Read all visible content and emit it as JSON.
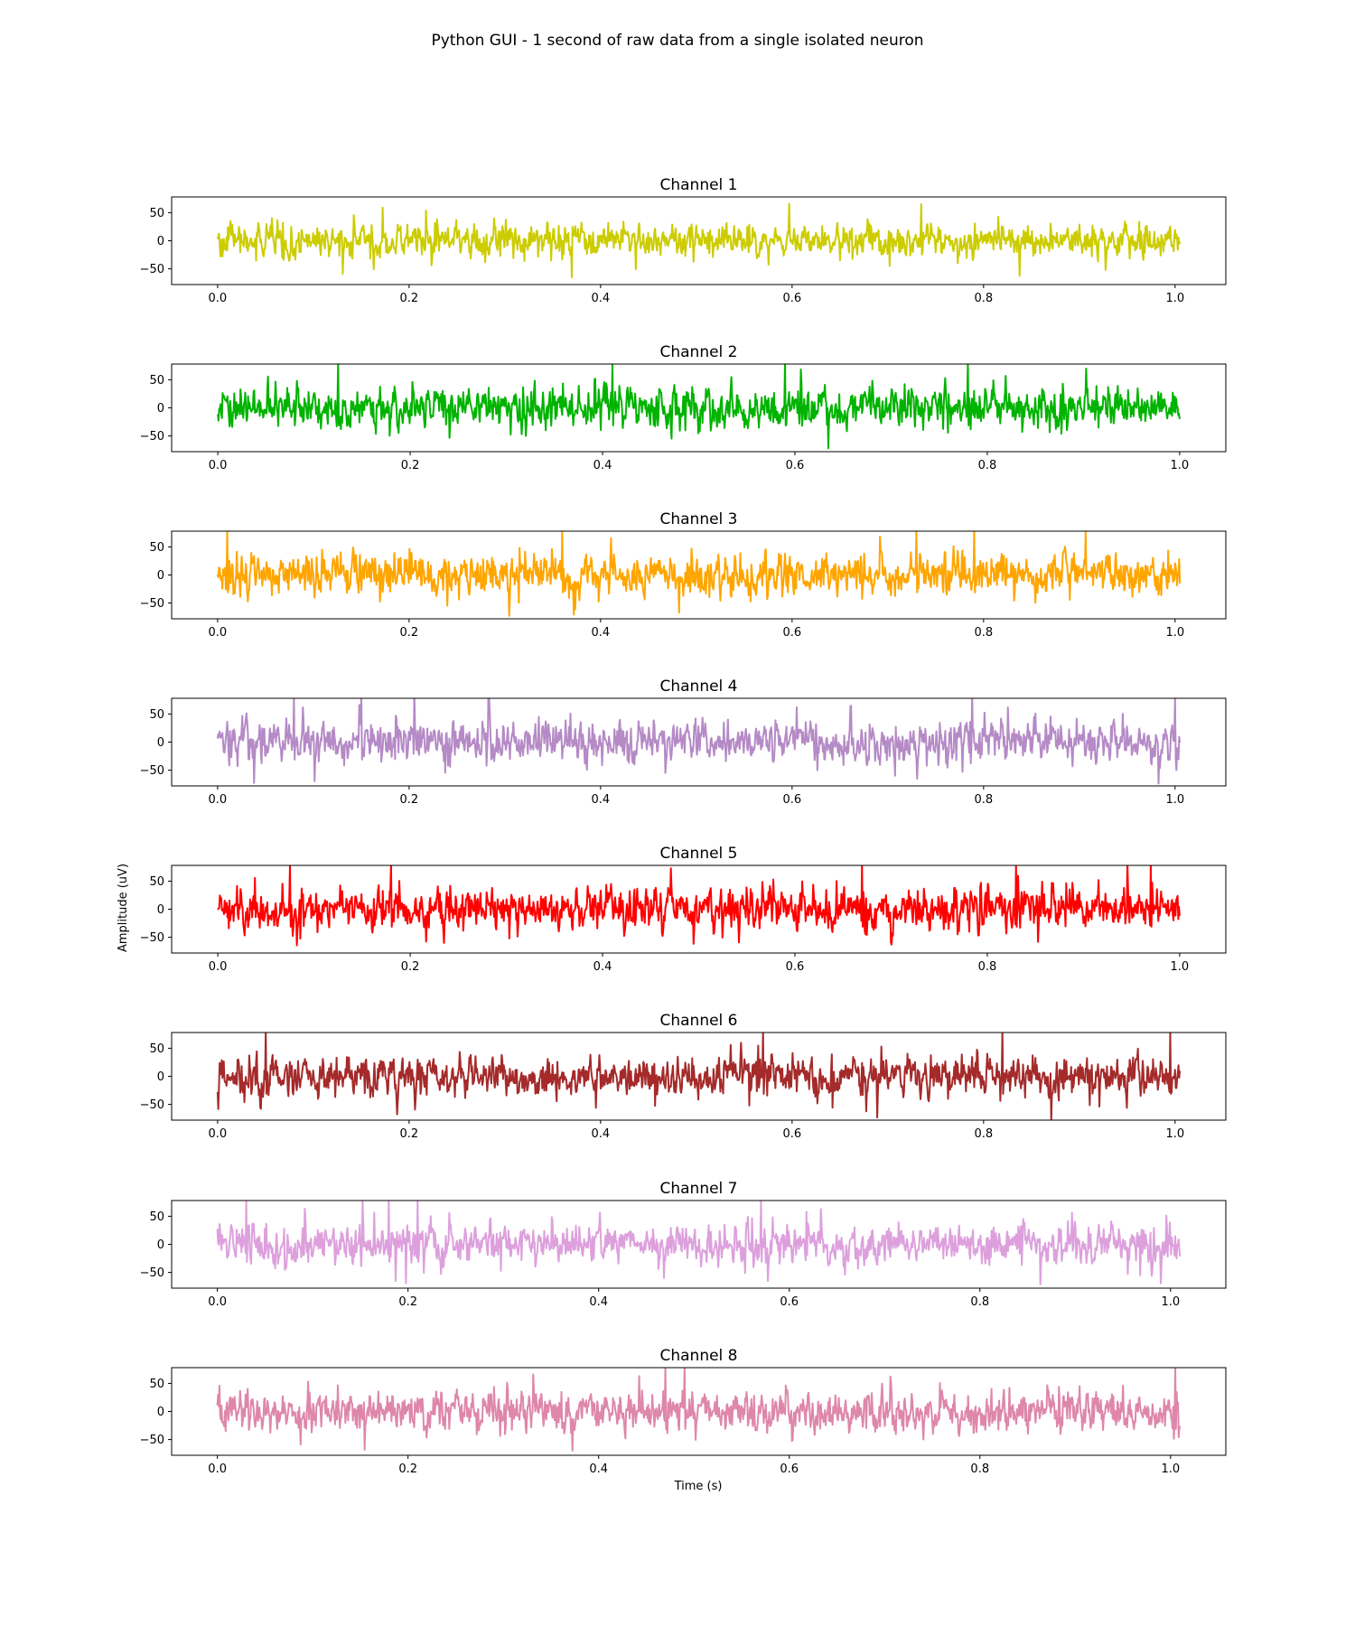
{
  "figure": {
    "title": "Python GUI - 1 second of raw data from a single isolated neuron",
    "xlabel": "Time (s)",
    "ylabel": "Amplitude (uV)"
  },
  "chart_data": [
    {
      "type": "line",
      "title": "Channel 1",
      "color": "#cccc00",
      "xlim": [
        -0.048,
        1.053
      ],
      "ylim": [
        -78,
        78
      ],
      "x_range": [
        0.0,
        1.005
      ],
      "xticks": [
        "0.0",
        "0.2",
        "0.4",
        "0.6",
        "0.8",
        "1.0"
      ],
      "xtick_values": [
        0.0,
        0.2,
        0.4,
        0.6,
        0.8,
        1.0
      ],
      "yticks": [
        "50",
        "0",
        "−50"
      ],
      "ytick_values": [
        50,
        0,
        -50
      ],
      "amplitude_range": [
        -62,
        62
      ],
      "peaks": [
        {
          "x": 0.735,
          "y": 62
        },
        {
          "x": 0.37,
          "y": -62
        }
      ]
    },
    {
      "type": "line",
      "title": "Channel 2",
      "color": "#00b300",
      "xlim": [
        -0.048,
        1.048
      ],
      "ylim": [
        -78,
        78
      ],
      "x_range": [
        0.0,
        1.0
      ],
      "xticks": [
        "0.0",
        "0.2",
        "0.4",
        "0.6",
        "0.8",
        "1.0"
      ],
      "xtick_values": [
        0.0,
        0.2,
        0.4,
        0.6,
        0.8,
        1.0
      ],
      "yticks": [
        "50",
        "0",
        "−50"
      ],
      "ytick_values": [
        50,
        0,
        -50
      ],
      "amplitude_range": [
        -78,
        78
      ],
      "peaks": [
        {
          "x": 0.125,
          "y": 78
        },
        {
          "x": 0.41,
          "y": 78
        },
        {
          "x": 0.59,
          "y": 78
        },
        {
          "x": 0.78,
          "y": 78
        }
      ]
    },
    {
      "type": "line",
      "title": "Channel 3",
      "color": "#ffa500",
      "xlim": [
        -0.048,
        1.053
      ],
      "ylim": [
        -78,
        78
      ],
      "x_range": [
        0.0,
        1.005
      ],
      "xticks": [
        "0.0",
        "0.2",
        "0.4",
        "0.6",
        "0.8",
        "1.0"
      ],
      "xtick_values": [
        0.0,
        0.2,
        0.4,
        0.6,
        0.8,
        1.0
      ],
      "yticks": [
        "50",
        "0",
        "−50"
      ],
      "ytick_values": [
        50,
        0,
        -50
      ],
      "amplitude_range": [
        -78,
        78
      ],
      "peaks": [
        {
          "x": 0.01,
          "y": 78
        },
        {
          "x": 0.36,
          "y": 78
        },
        {
          "x": 0.73,
          "y": 78
        },
        {
          "x": 0.79,
          "y": 78
        }
      ]
    },
    {
      "type": "line",
      "title": "Channel 4",
      "color": "#b58ac6",
      "xlim": [
        -0.048,
        1.053
      ],
      "ylim": [
        -78,
        78
      ],
      "x_range": [
        0.0,
        1.005
      ],
      "xticks": [
        "0.0",
        "0.2",
        "0.4",
        "0.6",
        "0.8",
        "1.0"
      ],
      "xtick_values": [
        0.0,
        0.2,
        0.4,
        0.6,
        0.8,
        1.0
      ],
      "yticks": [
        "50",
        "0",
        "−50"
      ],
      "ytick_values": [
        50,
        0,
        -50
      ],
      "amplitude_range": [
        -78,
        78
      ],
      "peaks": [
        {
          "x": 0.08,
          "y": 78
        },
        {
          "x": 0.15,
          "y": 78
        },
        {
          "x": 1.0,
          "y": 78
        }
      ]
    },
    {
      "type": "line",
      "title": "Channel 5",
      "color": "#ff0000",
      "xlim": [
        -0.048,
        1.048
      ],
      "ylim": [
        -78,
        78
      ],
      "x_range": [
        0.0,
        1.0
      ],
      "xticks": [
        "0.0",
        "0.2",
        "0.4",
        "0.6",
        "0.8",
        "1.0"
      ],
      "xtick_values": [
        0.0,
        0.2,
        0.4,
        0.6,
        0.8,
        1.0
      ],
      "yticks": [
        "50",
        "0",
        "−50"
      ],
      "ytick_values": [
        50,
        0,
        -50
      ],
      "amplitude_range": [
        -78,
        78
      ],
      "peaks": [
        {
          "x": 0.075,
          "y": 78
        },
        {
          "x": 0.18,
          "y": 78
        },
        {
          "x": 0.67,
          "y": 78
        },
        {
          "x": 0.83,
          "y": 78
        },
        {
          "x": 0.97,
          "y": 78
        }
      ]
    },
    {
      "type": "line",
      "title": "Channel 6",
      "color": "#a52a2a",
      "xlim": [
        -0.048,
        1.053
      ],
      "ylim": [
        -78,
        78
      ],
      "x_range": [
        0.0,
        1.005
      ],
      "xticks": [
        "0.0",
        "0.2",
        "0.4",
        "0.6",
        "0.8",
        "1.0"
      ],
      "xtick_values": [
        0.0,
        0.2,
        0.4,
        0.6,
        0.8,
        1.0
      ],
      "yticks": [
        "50",
        "0",
        "−50"
      ],
      "ytick_values": [
        50,
        0,
        -50
      ],
      "amplitude_range": [
        -78,
        78
      ],
      "peaks": [
        {
          "x": 0.05,
          "y": 78
        },
        {
          "x": 0.57,
          "y": 78
        },
        {
          "x": 0.82,
          "y": 78
        },
        {
          "x": 0.995,
          "y": 78
        }
      ]
    },
    {
      "type": "line",
      "title": "Channel 7",
      "color": "#dda0dd",
      "xlim": [
        -0.048,
        1.058
      ],
      "ylim": [
        -78,
        78
      ],
      "x_range": [
        0.0,
        1.01
      ],
      "xticks": [
        "0.0",
        "0.2",
        "0.4",
        "0.6",
        "0.8",
        "1.0"
      ],
      "xtick_values": [
        0.0,
        0.2,
        0.4,
        0.6,
        0.8,
        1.0
      ],
      "yticks": [
        "50",
        "0",
        "−50"
      ],
      "ytick_values": [
        50,
        0,
        -50
      ],
      "amplitude_range": [
        -78,
        78
      ],
      "peaks": [
        {
          "x": 0.03,
          "y": 78
        },
        {
          "x": 0.18,
          "y": 78
        },
        {
          "x": 0.21,
          "y": 78
        },
        {
          "x": 0.57,
          "y": 78
        }
      ]
    },
    {
      "type": "line",
      "title": "Channel 8",
      "color": "#de87aa",
      "xlim": [
        -0.048,
        1.058
      ],
      "ylim": [
        -78,
        78
      ],
      "x_range": [
        0.0,
        1.01
      ],
      "xticks": [
        "0.0",
        "0.2",
        "0.4",
        "0.6",
        "0.8",
        "1.0"
      ],
      "xtick_values": [
        0.0,
        0.2,
        0.4,
        0.6,
        0.8,
        1.0
      ],
      "yticks": [
        "50",
        "0",
        "−50"
      ],
      "ytick_values": [
        50,
        0,
        -50
      ],
      "amplitude_range": [
        -78,
        78
      ],
      "peaks": [
        {
          "x": 0.47,
          "y": 78
        },
        {
          "x": 0.49,
          "y": 78
        },
        {
          "x": 1.005,
          "y": 78
        }
      ]
    }
  ]
}
